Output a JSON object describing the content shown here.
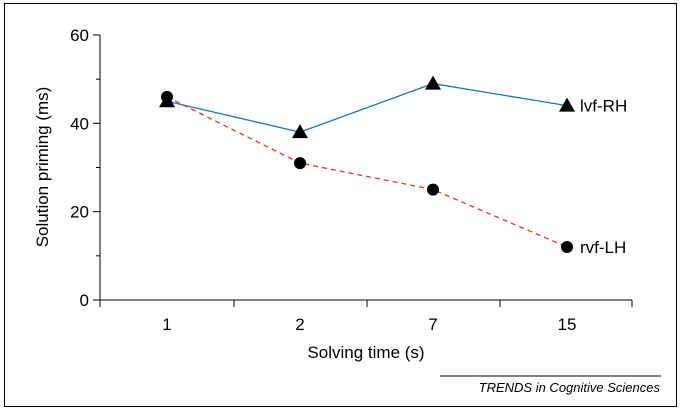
{
  "chart_data": {
    "type": "line",
    "title": "",
    "xlabel": "Solving time (s)",
    "ylabel": "Solution priming (ms)",
    "categories": [
      "1",
      "2",
      "7",
      "15"
    ],
    "ylim": [
      0,
      60
    ],
    "yticks": [
      0,
      20,
      40,
      60
    ],
    "grid": false,
    "series": [
      {
        "name": "lvf-RH",
        "values": [
          45,
          38,
          49,
          44
        ],
        "color": "#1f78b4",
        "line_style": "solid",
        "marker": "triangle"
      },
      {
        "name": "rvf-LH",
        "values": [
          46,
          31,
          25,
          12
        ],
        "color": "#e8302a",
        "line_style": "dashed",
        "marker": "circle"
      }
    ]
  },
  "credit": "TRENDS in Cognitive Sciences"
}
